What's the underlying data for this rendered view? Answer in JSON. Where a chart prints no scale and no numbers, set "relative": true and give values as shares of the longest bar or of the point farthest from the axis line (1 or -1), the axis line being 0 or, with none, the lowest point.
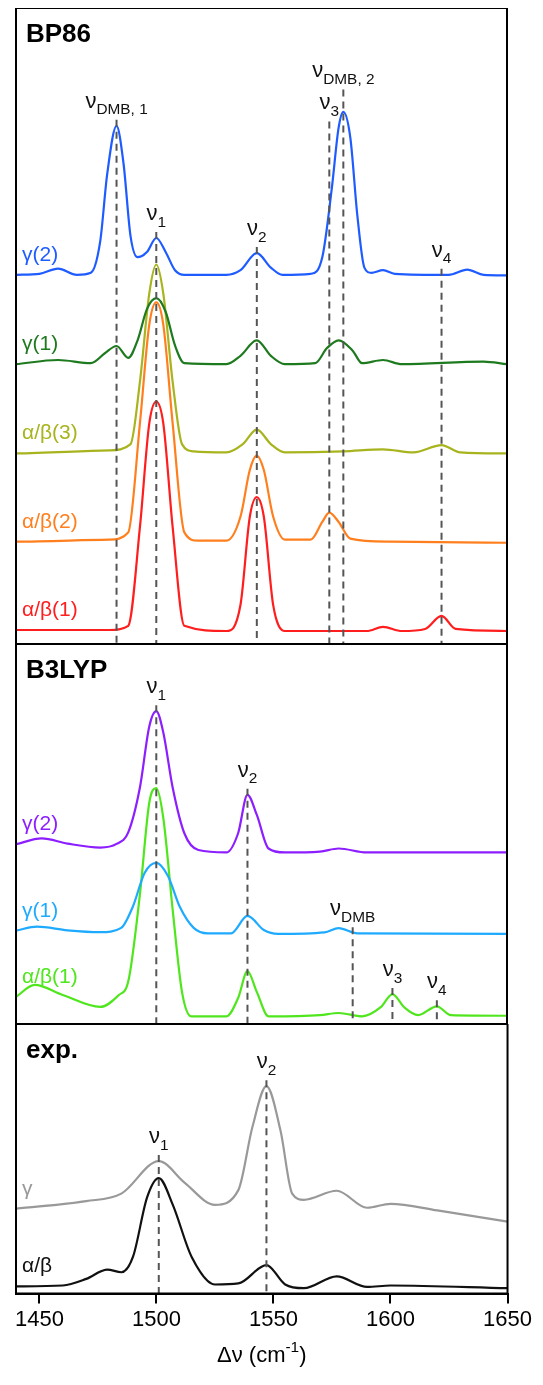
{
  "chart_data": [
    {
      "type": "line",
      "title": "BP86",
      "relative": true,
      "xlim": [
        1440,
        1650
      ],
      "xticks": [
        1450,
        1500,
        1550,
        1600,
        1650
      ],
      "tick_labels": false,
      "grid": false,
      "series": [
        {
          "name": "γ(2)",
          "color": "#1f5cff",
          "x": [
            1440,
            1450,
            1458,
            1466,
            1472,
            1476,
            1479,
            1483,
            1486,
            1489,
            1492,
            1496,
            1500,
            1504,
            1508,
            1512,
            1530,
            1536,
            1543,
            1549,
            1554,
            1566,
            1571,
            1575,
            1578,
            1580,
            1583,
            1586,
            1589,
            1592,
            1597,
            1602,
            1625,
            1633,
            1640,
            1650
          ],
          "values": [
            0.686,
            0.688,
            0.698,
            0.686,
            0.69,
            0.75,
            0.88,
            0.973,
            0.9,
            0.76,
            0.72,
            0.73,
            0.757,
            0.73,
            0.695,
            0.686,
            0.686,
            0.695,
            0.728,
            0.7,
            0.686,
            0.688,
            0.72,
            0.85,
            0.97,
            1.0,
            0.95,
            0.8,
            0.7,
            0.69,
            0.695,
            0.688,
            0.686,
            0.696,
            0.686,
            0.685
          ]
        },
        {
          "name": "γ(1)",
          "color": "#1e7a1e",
          "x": [
            1440,
            1458,
            1472,
            1478,
            1483,
            1488,
            1492,
            1496,
            1500,
            1504,
            1508,
            1512,
            1530,
            1536,
            1543,
            1549,
            1555,
            1568,
            1573,
            1578,
            1584,
            1588,
            1597,
            1605,
            1640,
            1650
          ],
          "values": [
            0.514,
            0.522,
            0.516,
            0.535,
            0.549,
            0.526,
            0.56,
            0.62,
            0.641,
            0.615,
            0.55,
            0.516,
            0.514,
            0.53,
            0.56,
            0.53,
            0.514,
            0.516,
            0.545,
            0.56,
            0.54,
            0.516,
            0.522,
            0.514,
            0.519,
            0.514
          ]
        },
        {
          "name": "α/β(3)",
          "color": "#a8b41e",
          "x": [
            1440,
            1480,
            1489,
            1493,
            1497,
            1500,
            1503,
            1507,
            1511,
            1516,
            1530,
            1537,
            1543,
            1549,
            1555,
            1580,
            1597,
            1610,
            1622,
            1630,
            1650
          ],
          "values": [
            0.342,
            0.348,
            0.36,
            0.48,
            0.65,
            0.706,
            0.65,
            0.48,
            0.36,
            0.346,
            0.344,
            0.36,
            0.388,
            0.36,
            0.344,
            0.346,
            0.35,
            0.344,
            0.358,
            0.344,
            0.342
          ]
        },
        {
          "name": "α/β(2)",
          "color": "#ff7f1e",
          "x": [
            1440,
            1480,
            1488,
            1493,
            1497,
            1500,
            1503,
            1507,
            1512,
            1518,
            1530,
            1536,
            1540,
            1543,
            1546,
            1550,
            1555,
            1566,
            1571,
            1574,
            1578,
            1583,
            1600,
            1650
          ],
          "values": [
            0.172,
            0.176,
            0.19,
            0.4,
            0.59,
            0.633,
            0.59,
            0.4,
            0.19,
            0.174,
            0.174,
            0.22,
            0.31,
            0.338,
            0.31,
            0.22,
            0.176,
            0.176,
            0.21,
            0.228,
            0.21,
            0.178,
            0.172,
            0.17
          ]
        },
        {
          "name": "α/β(1)",
          "color": "#ff1e1e",
          "x": [
            1440,
            1480,
            1488,
            1493,
            1497,
            1500,
            1503,
            1507,
            1512,
            1530,
            1536,
            1540,
            1543,
            1546,
            1550,
            1555,
            1590,
            1597,
            1605,
            1615,
            1622,
            1628,
            1650
          ],
          "values": [
            0.002,
            0.002,
            0.01,
            0.2,
            0.4,
            0.442,
            0.4,
            0.2,
            0.01,
            0.0,
            0.05,
            0.22,
            0.258,
            0.22,
            0.05,
            0.0,
            0.0,
            0.008,
            0.0,
            0.004,
            0.029,
            0.004,
            0.0
          ]
        }
      ],
      "ref_lines": [
        {
          "axis": "x",
          "value": 1483,
          "label": "ν$_{DMB, 1}$",
          "color": "#555555",
          "line_style": "dashed"
        },
        {
          "axis": "x",
          "value": 1500,
          "label": "ν$_{1}$",
          "color": "#555555",
          "line_style": "dashed"
        },
        {
          "axis": "x",
          "value": 1543,
          "label": "ν$_{2}$",
          "color": "#555555",
          "line_style": "dashed"
        },
        {
          "axis": "x",
          "value": 1574,
          "label": "ν$_{3}$",
          "color": "#555555",
          "line_style": "dashed"
        },
        {
          "axis": "x",
          "value": 1580,
          "label": "ν$_{DMB, 2}$",
          "color": "#555555",
          "line_style": "dashed"
        },
        {
          "axis": "x",
          "value": 1622,
          "label": "ν$_{4}$",
          "color": "#555555",
          "line_style": "dashed"
        }
      ]
    },
    {
      "type": "line",
      "title": "B3LYP",
      "relative": true,
      "xlim": [
        1440,
        1650
      ],
      "xticks": [
        1450,
        1500,
        1550,
        1600,
        1650
      ],
      "tick_labels": false,
      "grid": false,
      "series": [
        {
          "name": "γ(2)",
          "color": "#8c1eff",
          "x": [
            1440,
            1451,
            1462,
            1476,
            1483,
            1488,
            1493,
            1497,
            1500,
            1503,
            1507,
            1512,
            1518,
            1530,
            1535,
            1539,
            1543,
            1548,
            1555,
            1570,
            1578,
            1590,
            1650
          ],
          "values": [
            0.564,
            0.583,
            0.566,
            0.553,
            0.565,
            0.603,
            0.75,
            0.95,
            1.0,
            0.93,
            0.75,
            0.6,
            0.545,
            0.537,
            0.6,
            0.726,
            0.66,
            0.55,
            0.537,
            0.54,
            0.55,
            0.537,
            0.537
          ]
        },
        {
          "name": "γ(1)",
          "color": "#1eaaff",
          "x": [
            1440,
            1449,
            1462,
            1476,
            1485,
            1490,
            1495,
            1500,
            1505,
            1510,
            1516,
            1522,
            1532,
            1539,
            1546,
            1552,
            1572,
            1578,
            1586,
            1650
          ],
          "values": [
            0.281,
            0.294,
            0.282,
            0.276,
            0.29,
            0.36,
            0.47,
            0.503,
            0.46,
            0.36,
            0.29,
            0.272,
            0.272,
            0.329,
            0.283,
            0.27,
            0.275,
            0.289,
            0.272,
            0.27
          ]
        },
        {
          "name": "α/β(1)",
          "color": "#50e61e",
          "x": [
            1440,
            1448,
            1460,
            1476,
            1484,
            1488,
            1493,
            1497,
            1500,
            1503,
            1507,
            1511,
            1515,
            1530,
            1535,
            1539,
            1543,
            1548,
            1570,
            1578,
            1588,
            1596,
            1601,
            1606,
            1612,
            1620,
            1626,
            1650
          ],
          "values": [
            0.064,
            0.103,
            0.07,
            0.031,
            0.07,
            0.114,
            0.4,
            0.7,
            0.748,
            0.65,
            0.35,
            0.08,
            0.0,
            0.0,
            0.06,
            0.148,
            0.08,
            0.0,
            0.004,
            0.011,
            0.0,
            0.03,
            0.073,
            0.03,
            0.004,
            0.033,
            0.004,
            0.002
          ]
        }
      ],
      "ref_lines": [
        {
          "axis": "x",
          "value": 1500,
          "label": "ν$_{1}$",
          "color": "#555555",
          "line_style": "dashed"
        },
        {
          "axis": "x",
          "value": 1539,
          "label": "ν$_{2}$",
          "color": "#555555",
          "line_style": "dashed"
        },
        {
          "axis": "x",
          "value": 1584,
          "label": "ν$_{DMB}$",
          "color": "#555555",
          "line_style": "dashed"
        },
        {
          "axis": "x",
          "value": 1601,
          "label": "ν$_{3}$",
          "color": "#555555",
          "line_style": "dashed"
        },
        {
          "axis": "x",
          "value": 1620,
          "label": "ν$_{4}$",
          "color": "#555555",
          "line_style": "dashed"
        }
      ]
    },
    {
      "type": "line",
      "title": "exp.",
      "relative": true,
      "xlabel": "Δν (cm$^{-1}$)",
      "xlim": [
        1440,
        1650
      ],
      "xticks": [
        1450,
        1500,
        1550,
        1600,
        1650
      ],
      "tick_labels": "x",
      "grid": false,
      "series": [
        {
          "name": "γ",
          "color": "#999999",
          "x": [
            1440,
            1470,
            1485,
            1501,
            1512,
            1525,
            1535,
            1541,
            1547,
            1553,
            1558,
            1563,
            1577,
            1590,
            1600,
            1620,
            1650
          ],
          "values": [
            0.41,
            0.446,
            0.482,
            0.639,
            0.535,
            0.428,
            0.499,
            0.803,
            1.0,
            0.786,
            0.482,
            0.452,
            0.496,
            0.414,
            0.433,
            0.401,
            0.347
          ]
        },
        {
          "name": "α/β",
          "color": "#111111",
          "x": [
            1440,
            1460,
            1470,
            1479,
            1485,
            1490,
            1496,
            1501,
            1507,
            1515,
            1525,
            1535,
            1547,
            1555,
            1563,
            1577,
            1590,
            1600,
            1650
          ],
          "values": [
            0.035,
            0.039,
            0.071,
            0.116,
            0.103,
            0.178,
            0.464,
            0.557,
            0.428,
            0.178,
            0.044,
            0.049,
            0.137,
            0.044,
            0.026,
            0.083,
            0.032,
            0.039,
            0.026
          ]
        }
      ],
      "ref_lines": [
        {
          "axis": "x",
          "value": 1501,
          "label": "ν$_{1}$",
          "color": "#555555",
          "line_style": "dashed"
        },
        {
          "axis": "x",
          "value": 1547,
          "label": "ν$_{2}$",
          "color": "#555555",
          "line_style": "dashed"
        }
      ]
    }
  ]
}
